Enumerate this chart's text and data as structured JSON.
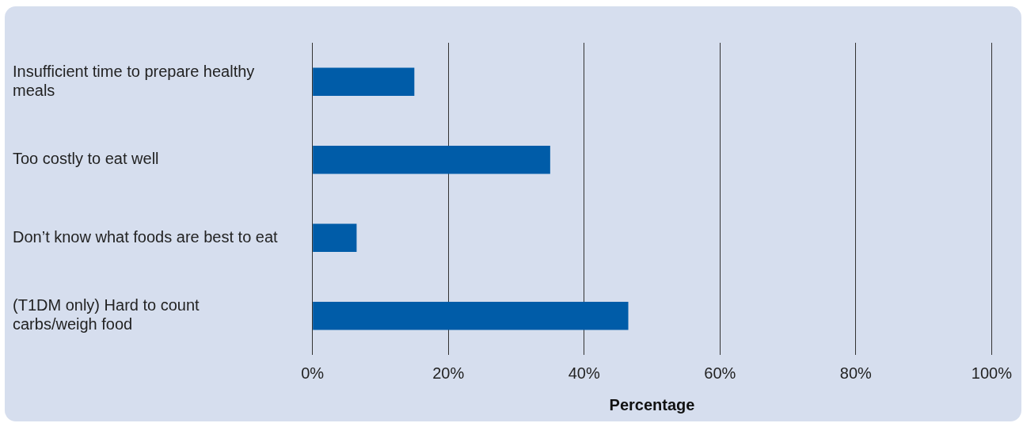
{
  "chart_data": {
    "type": "bar",
    "orientation": "horizontal",
    "xlabel": "Percentage",
    "categories": [
      "Insufficient time to prepare healthy meals",
      "Too costly to eat well",
      "Don’t know what foods are best to eat",
      "(T1DM only) Hard to count carbs/weigh food"
    ],
    "values": [
      15,
      35,
      6.5,
      46.5
    ],
    "color": "#005ca8",
    "xlim": [
      0,
      100
    ],
    "xticks": [
      {
        "value": 0,
        "label": "0%"
      },
      {
        "value": 20,
        "label": "20%"
      },
      {
        "value": 40,
        "label": "40%"
      },
      {
        "value": 60,
        "label": "60%"
      },
      {
        "value": 80,
        "label": "80%"
      },
      {
        "value": 100,
        "label": "100%"
      }
    ],
    "grid": "x",
    "legend": false
  }
}
